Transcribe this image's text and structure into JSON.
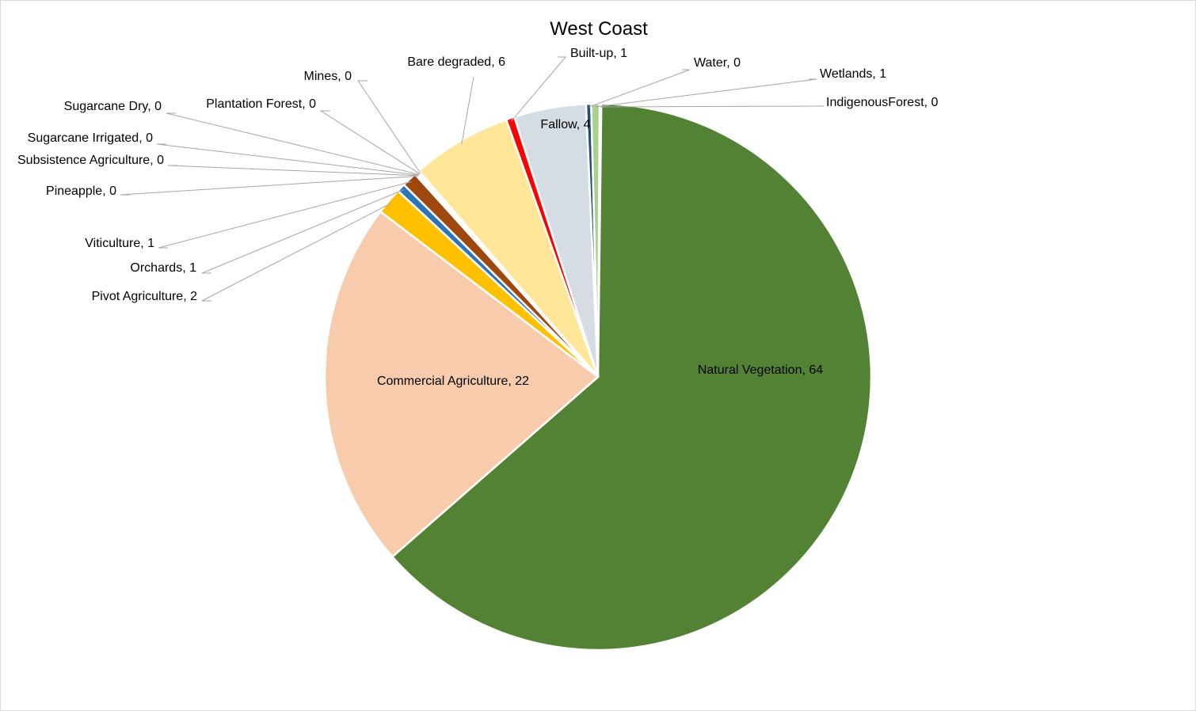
{
  "chart_data": {
    "type": "pie",
    "title": "West Coast",
    "slices": [
      {
        "name": "IndigenousForest",
        "value": 0.1,
        "display": "0",
        "color": "#2e75b6"
      },
      {
        "name": "Natural Vegetation",
        "value": 64,
        "display": "64",
        "color": "#548235"
      },
      {
        "name": "Commercial Agriculture",
        "value": 22,
        "display": "22",
        "color": "#f8cbad"
      },
      {
        "name": "Pivot  Agriculture",
        "value": 1.6,
        "display": "2",
        "color": "#ffc000"
      },
      {
        "name": "Orchards",
        "value": 0.5,
        "display": "1",
        "color": "#2e75b6"
      },
      {
        "name": "Viticulture",
        "value": 0.9,
        "display": "1",
        "color": "#9e480e"
      },
      {
        "name": "Pineapple",
        "value": 0.05,
        "display": "0",
        "color": "#a5a5a5"
      },
      {
        "name": "Subsistence Agriculture",
        "value": 0.05,
        "display": "0",
        "color": "#ffd966"
      },
      {
        "name": "Sugarcane Irrigated",
        "value": 0.05,
        "display": "0",
        "color": "#70ad47"
      },
      {
        "name": "Sugarcane Dry",
        "value": 0.05,
        "display": "0",
        "color": "#4472c4"
      },
      {
        "name": "Plantation Forest",
        "value": 0.05,
        "display": "0",
        "color": "#ed7d31"
      },
      {
        "name": "Mines",
        "value": 0.05,
        "display": "0",
        "color": "#7f7f7f"
      },
      {
        "name": "Bare degraded",
        "value": 6.0,
        "display": "6",
        "color": "#ffe699"
      },
      {
        "name": "Built-up",
        "value": 0.5,
        "display": "1",
        "color": "#ff0000"
      },
      {
        "name": "Fallow",
        "value": 4.3,
        "display": "4",
        "color": "#d6dce4"
      },
      {
        "name": "Water",
        "value": 0.3,
        "display": "0",
        "color": "#1f4e79"
      },
      {
        "name": "Wetlands",
        "value": 0.5,
        "display": "1",
        "color": "#a9d18e"
      }
    ],
    "legend": "none",
    "labels": "outside-with-leader-lines"
  }
}
